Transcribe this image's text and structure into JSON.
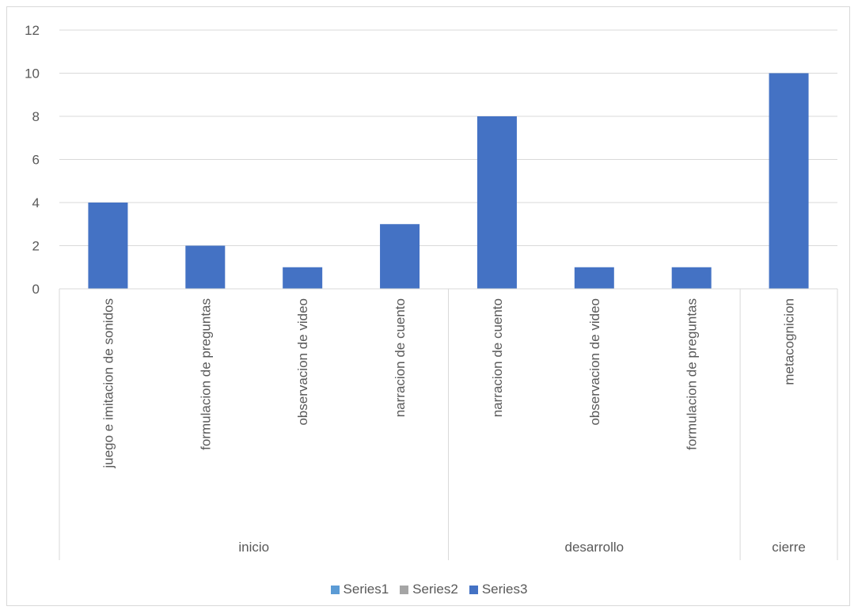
{
  "chart_data": {
    "type": "bar",
    "title": "",
    "xlabel": "",
    "ylabel": "",
    "ylim": [
      0,
      12
    ],
    "yticks": [
      0,
      2,
      4,
      6,
      8,
      10,
      12
    ],
    "grid": true,
    "legend_position": "bottom",
    "categories": [
      {
        "label": "juego e imitacion de sonidos",
        "group": "inicio"
      },
      {
        "label": "formulacion de preguntas",
        "group": "inicio"
      },
      {
        "label": "observacion de video",
        "group": "inicio"
      },
      {
        "label": "narracion de cuento",
        "group": "inicio"
      },
      {
        "label": "narracion de cuento",
        "group": "desarrollo"
      },
      {
        "label": "observacion de video",
        "group": "desarrollo"
      },
      {
        "label": "formulacion de preguntas",
        "group": "desarrollo"
      },
      {
        "label": "metacognicion",
        "group": "cierre"
      }
    ],
    "groups": [
      "inicio",
      "desarrollo",
      "cierre"
    ],
    "series": [
      {
        "name": "Series1",
        "color": "#5b9bd5",
        "values": [
          null,
          null,
          null,
          null,
          null,
          null,
          null,
          null
        ]
      },
      {
        "name": "Series2",
        "color": "#a5a5a5",
        "values": [
          null,
          null,
          null,
          null,
          null,
          null,
          null,
          null
        ]
      },
      {
        "name": "Series3",
        "color": "#4472c4",
        "values": [
          4,
          2,
          1,
          3,
          8,
          1,
          1,
          10
        ]
      }
    ]
  }
}
